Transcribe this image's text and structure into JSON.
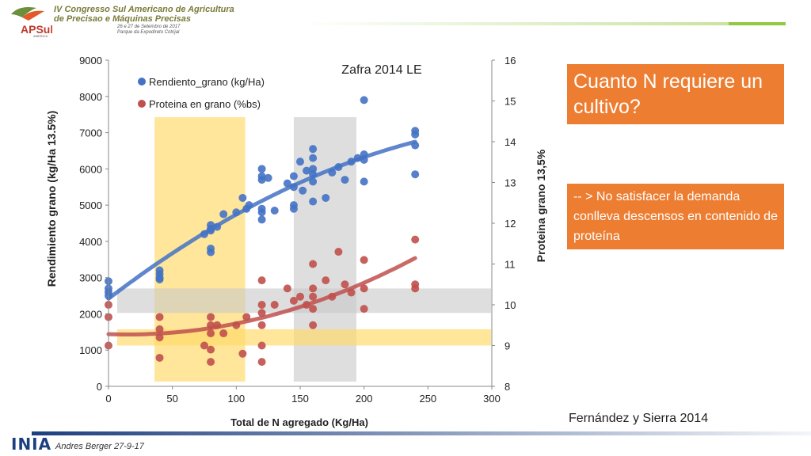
{
  "header": {
    "logo_text": "APSul",
    "logo_sub": "AMERICA",
    "conference_line1": "IV Congresso Sul Americano de Agricultura",
    "conference_line2": "de Precisao e Máquinas Precisas",
    "dates_line1": "26 e 27 de Setembro de 2017",
    "dates_line2": "Parque da Expodireto Cotrijal"
  },
  "question_box": {
    "text": "Cuanto N requiere un cultivo?"
  },
  "note_box": {
    "text": "-- > No satisfacer la demanda conlleva descensos en contenido de proteína"
  },
  "citation": "Fernández y Sierra 2014",
  "footer": {
    "logo": "INIA",
    "author": "Andres Berger 27-9-17"
  },
  "colors": {
    "blue": "#4472c4",
    "red": "#c0504d",
    "orange": "#ed7d31",
    "yellow_band": "#ffd966",
    "gray_band": "#d0d0d0",
    "header_green": "#92c83e"
  },
  "chart_data": {
    "type": "scatter",
    "title": "Zafra 2014 LE",
    "xlabel": "Total de N agregado (Kg/Ha)",
    "ylabel": "Rendimiento grano (kg/Ha 13.5%)",
    "y2label": "Proteina grano 13,5%",
    "xlim": [
      0,
      300
    ],
    "ylim": [
      0,
      9000
    ],
    "y2lim": [
      8,
      16
    ],
    "xticks": [
      0,
      50,
      100,
      150,
      200,
      250,
      300
    ],
    "yticks": [
      0,
      1000,
      2000,
      3000,
      4000,
      5000,
      6000,
      7000,
      8000,
      9000
    ],
    "y2ticks": [
      8,
      9,
      10,
      11,
      12,
      13,
      14,
      15,
      16
    ],
    "legend_position": "top-left",
    "series": [
      {
        "name": "Rendiento_grano (kg/Ha)",
        "axis": "left",
        "color": "#4472c4",
        "points": [
          [
            0,
            2900
          ],
          [
            0,
            2700
          ],
          [
            0,
            2600
          ],
          [
            0,
            2500
          ],
          [
            40,
            3200
          ],
          [
            40,
            3100
          ],
          [
            40,
            3000
          ],
          [
            40,
            2950
          ],
          [
            75,
            4200
          ],
          [
            80,
            4450
          ],
          [
            80,
            4300
          ],
          [
            80,
            4350
          ],
          [
            80,
            3800
          ],
          [
            80,
            3700
          ],
          [
            85,
            4400
          ],
          [
            90,
            4750
          ],
          [
            100,
            4800
          ],
          [
            105,
            5200
          ],
          [
            110,
            5000
          ],
          [
            108,
            4900
          ],
          [
            120,
            6000
          ],
          [
            120,
            5800
          ],
          [
            120,
            5700
          ],
          [
            120,
            4900
          ],
          [
            120,
            4800
          ],
          [
            120,
            4600
          ],
          [
            125,
            5750
          ],
          [
            130,
            4850
          ],
          [
            140,
            5600
          ],
          [
            145,
            5800
          ],
          [
            145,
            5500
          ],
          [
            145,
            5000
          ],
          [
            145,
            4900
          ],
          [
            150,
            6200
          ],
          [
            152,
            5400
          ],
          [
            155,
            5950
          ],
          [
            160,
            6550
          ],
          [
            160,
            6300
          ],
          [
            160,
            6000
          ],
          [
            160,
            5850
          ],
          [
            160,
            5650
          ],
          [
            160,
            5100
          ],
          [
            170,
            5200
          ],
          [
            175,
            5900
          ],
          [
            180,
            6050
          ],
          [
            185,
            5700
          ],
          [
            190,
            6200
          ],
          [
            195,
            6300
          ],
          [
            200,
            7900
          ],
          [
            200,
            6400
          ],
          [
            200,
            6250
          ],
          [
            200,
            5650
          ],
          [
            240,
            7050
          ],
          [
            240,
            6950
          ],
          [
            240,
            6650
          ],
          [
            240,
            5850
          ]
        ]
      },
      {
        "name": "Proteina en grano (%bs)",
        "axis": "right",
        "color": "#c0504d",
        "points": [
          [
            0,
            10.0
          ],
          [
            0,
            9.7
          ],
          [
            0,
            9.0
          ],
          [
            40,
            9.7
          ],
          [
            40,
            9.4
          ],
          [
            40,
            9.2
          ],
          [
            40,
            8.7
          ],
          [
            75,
            9.0
          ],
          [
            80,
            9.7
          ],
          [
            80,
            9.5
          ],
          [
            80,
            9.3
          ],
          [
            80,
            8.9
          ],
          [
            80,
            8.6
          ],
          [
            85,
            9.5
          ],
          [
            90,
            9.3
          ],
          [
            100,
            9.5
          ],
          [
            105,
            8.8
          ],
          [
            108,
            9.7
          ],
          [
            120,
            10.6
          ],
          [
            120,
            10.0
          ],
          [
            120,
            9.8
          ],
          [
            120,
            9.5
          ],
          [
            120,
            9.0
          ],
          [
            120,
            8.6
          ],
          [
            130,
            10.0
          ],
          [
            140,
            10.4
          ],
          [
            145,
            10.1
          ],
          [
            150,
            10.2
          ],
          [
            155,
            10.0
          ],
          [
            160,
            11.0
          ],
          [
            160,
            10.4
          ],
          [
            160,
            10.2
          ],
          [
            160,
            9.9
          ],
          [
            160,
            9.5
          ],
          [
            170,
            10.6
          ],
          [
            175,
            10.2
          ],
          [
            180,
            11.3
          ],
          [
            185,
            10.5
          ],
          [
            190,
            10.3
          ],
          [
            200,
            11.1
          ],
          [
            200,
            10.4
          ],
          [
            200,
            9.9
          ],
          [
            240,
            11.6
          ],
          [
            240,
            10.5
          ],
          [
            240,
            10.4
          ]
        ]
      }
    ],
    "trendlines": [
      {
        "series": "Rendiento_grano (kg/Ha)",
        "type": "quadratic"
      },
      {
        "series": "Proteina en grano (%bs)",
        "type": "quadratic"
      }
    ],
    "highlight_regions": [
      {
        "kind": "x_band",
        "x": [
          36,
          107
        ],
        "color": "yellow"
      },
      {
        "kind": "x_band",
        "x": [
          145,
          194
        ],
        "color": "gray"
      },
      {
        "kind": "y2_band",
        "y2": [
          9.0,
          9.4
        ],
        "color": "yellow"
      },
      {
        "kind": "y2_band",
        "y2": [
          9.8,
          10.4
        ],
        "color": "gray"
      }
    ]
  }
}
